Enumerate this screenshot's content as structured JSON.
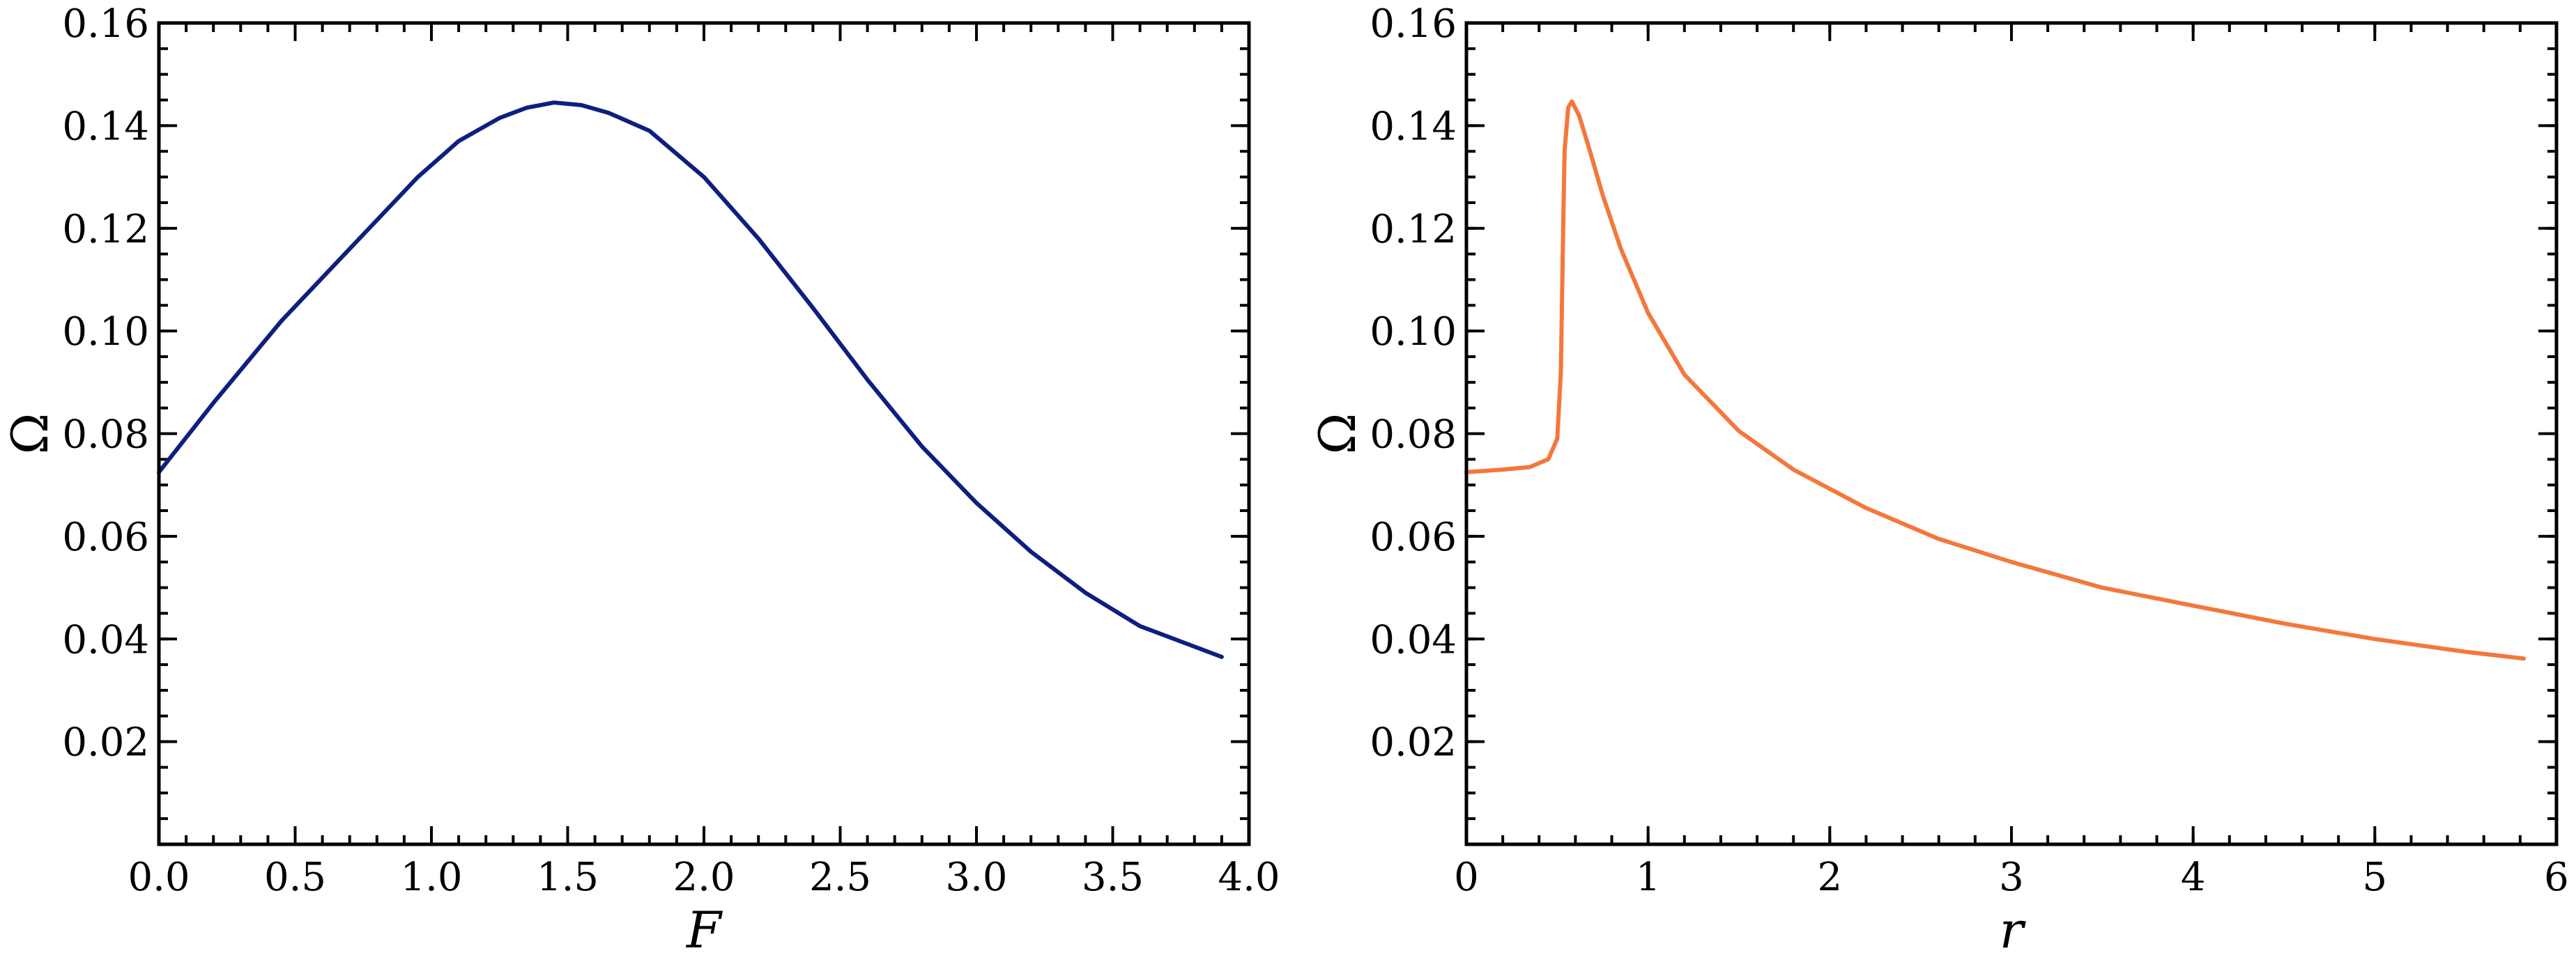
{
  "chart_data": [
    {
      "type": "line",
      "xlabel": "F",
      "ylabel": "Ω",
      "xlim": [
        0.0,
        4.0
      ],
      "ylim": [
        0.0,
        0.16
      ],
      "xticks": [
        0.0,
        0.5,
        1.0,
        1.5,
        2.0,
        2.5,
        3.0,
        3.5,
        4.0
      ],
      "xtick_labels": [
        "0.0",
        "0.5",
        "1.0",
        "1.5",
        "2.0",
        "2.5",
        "3.0",
        "3.5",
        "4.0"
      ],
      "xminor_step": 0.1,
      "yticks": [
        0.02,
        0.04,
        0.06,
        0.08,
        0.1,
        0.12,
        0.14,
        0.16
      ],
      "ytick_labels": [
        "0.02",
        "0.04",
        "0.06",
        "0.08",
        "0.10",
        "0.12",
        "0.14",
        "0.16"
      ],
      "yminor_step": 0.005,
      "grid": false,
      "series": [
        {
          "color": "#0d1f80",
          "x": [
            0.0,
            0.2,
            0.45,
            0.7,
            0.95,
            1.1,
            1.25,
            1.35,
            1.45,
            1.55,
            1.65,
            1.8,
            2.0,
            2.2,
            2.4,
            2.6,
            2.8,
            3.0,
            3.2,
            3.4,
            3.6,
            3.9
          ],
          "y": [
            0.0725,
            0.086,
            0.102,
            0.116,
            0.13,
            0.137,
            0.1415,
            0.1435,
            0.1445,
            0.144,
            0.1425,
            0.139,
            0.13,
            0.118,
            0.1045,
            0.0905,
            0.0775,
            0.0665,
            0.057,
            0.049,
            0.0425,
            0.0365
          ]
        }
      ]
    },
    {
      "type": "line",
      "xlabel": "r",
      "ylabel": "Ω",
      "xlim": [
        0,
        6
      ],
      "ylim": [
        0.0,
        0.16
      ],
      "xticks": [
        0,
        1,
        2,
        3,
        4,
        5,
        6
      ],
      "xtick_labels": [
        "0",
        "1",
        "2",
        "3",
        "4",
        "5",
        "6"
      ],
      "xminor_step": 0.2,
      "yticks": [
        0.02,
        0.04,
        0.06,
        0.08,
        0.1,
        0.12,
        0.14,
        0.16
      ],
      "ytick_labels": [
        "0.02",
        "0.04",
        "0.06",
        "0.08",
        "0.10",
        "0.12",
        "0.14",
        "0.16"
      ],
      "yminor_step": 0.005,
      "grid": false,
      "series": [
        {
          "color": "#f4773b",
          "x": [
            0.0,
            0.2,
            0.35,
            0.45,
            0.5,
            0.52,
            0.53,
            0.54,
            0.56,
            0.58,
            0.62,
            0.68,
            0.75,
            0.85,
            1.0,
            1.2,
            1.5,
            1.8,
            2.2,
            2.6,
            3.0,
            3.5,
            4.0,
            4.5,
            5.0,
            5.5,
            5.82
          ],
          "y": [
            0.0725,
            0.073,
            0.0735,
            0.075,
            0.079,
            0.092,
            0.115,
            0.135,
            0.1435,
            0.1447,
            0.142,
            0.135,
            0.1265,
            0.116,
            0.1035,
            0.0915,
            0.0805,
            0.073,
            0.0655,
            0.0595,
            0.055,
            0.05,
            0.0465,
            0.043,
            0.04,
            0.0375,
            0.0362
          ]
        }
      ]
    }
  ]
}
